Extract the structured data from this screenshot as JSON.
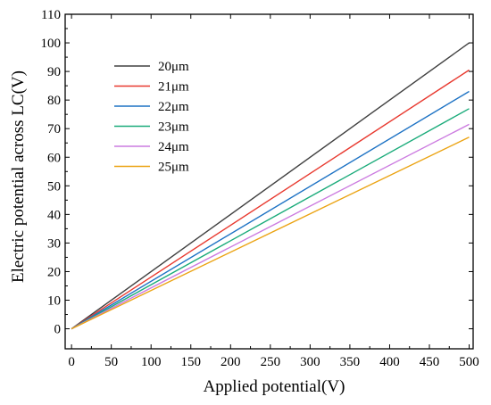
{
  "chart_data": {
    "type": "line",
    "title": "",
    "xlabel": "Applied potential(V)",
    "ylabel": "Electric potential across  LC(V)",
    "xlim": [
      -8,
      505
    ],
    "ylim": [
      -7,
      110
    ],
    "xticks": [
      0,
      50,
      100,
      150,
      200,
      250,
      300,
      350,
      400,
      450,
      500
    ],
    "yticks": [
      0,
      10,
      20,
      30,
      40,
      50,
      60,
      70,
      80,
      90,
      100,
      110
    ],
    "grid": false,
    "legend_position": "top-left",
    "series": [
      {
        "name": "20μm",
        "color": "#404040",
        "x": [
          0,
          500
        ],
        "y": [
          0,
          100
        ]
      },
      {
        "name": "21μm",
        "color": "#e8392f",
        "x": [
          0,
          500
        ],
        "y": [
          0,
          90.5
        ]
      },
      {
        "name": "22μm",
        "color": "#1d72c4",
        "x": [
          0,
          500
        ],
        "y": [
          0,
          83
        ]
      },
      {
        "name": "23μm",
        "color": "#1aab7a",
        "x": [
          0,
          500
        ],
        "y": [
          0,
          77
        ]
      },
      {
        "name": "24μm",
        "color": "#cc7be0",
        "x": [
          0,
          500
        ],
        "y": [
          0,
          71.5
        ]
      },
      {
        "name": "25μm",
        "color": "#eba312",
        "x": [
          0,
          500
        ],
        "y": [
          0,
          67
        ]
      }
    ]
  }
}
